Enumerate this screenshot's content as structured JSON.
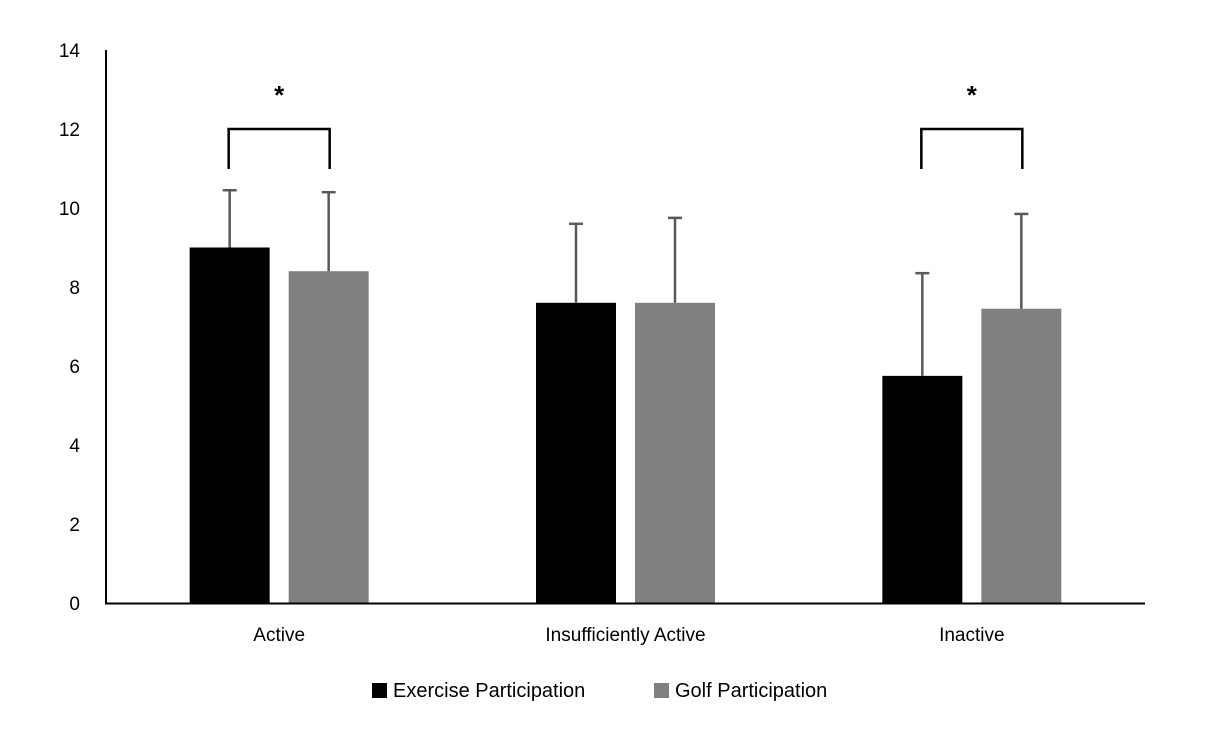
{
  "chart_data": {
    "type": "bar",
    "title": "",
    "xlabel": "",
    "ylabel": "",
    "ylim": [
      0,
      14
    ],
    "yticks": [
      0,
      2,
      4,
      6,
      8,
      10,
      12,
      14
    ],
    "grid": false,
    "categories": [
      "Active",
      "Insufficiently Active",
      "Inactive"
    ],
    "series": [
      {
        "name": "Exercise Participation",
        "color": "#000000",
        "values": [
          9.0,
          7.6,
          5.75
        ],
        "error_upper": [
          1.45,
          2.0,
          2.6
        ]
      },
      {
        "name": "Golf Participation",
        "color": "#808080",
        "values": [
          8.4,
          7.6,
          7.45
        ],
        "error_upper": [
          2.0,
          2.15,
          2.4
        ]
      }
    ],
    "annotations": [
      {
        "category": "Active",
        "text": "*",
        "type": "significance-bracket"
      },
      {
        "category": "Inactive",
        "text": "*",
        "type": "significance-bracket"
      }
    ],
    "legend": {
      "position": "bottom",
      "entries": [
        "Exercise Participation",
        "Golf Participation"
      ]
    }
  }
}
